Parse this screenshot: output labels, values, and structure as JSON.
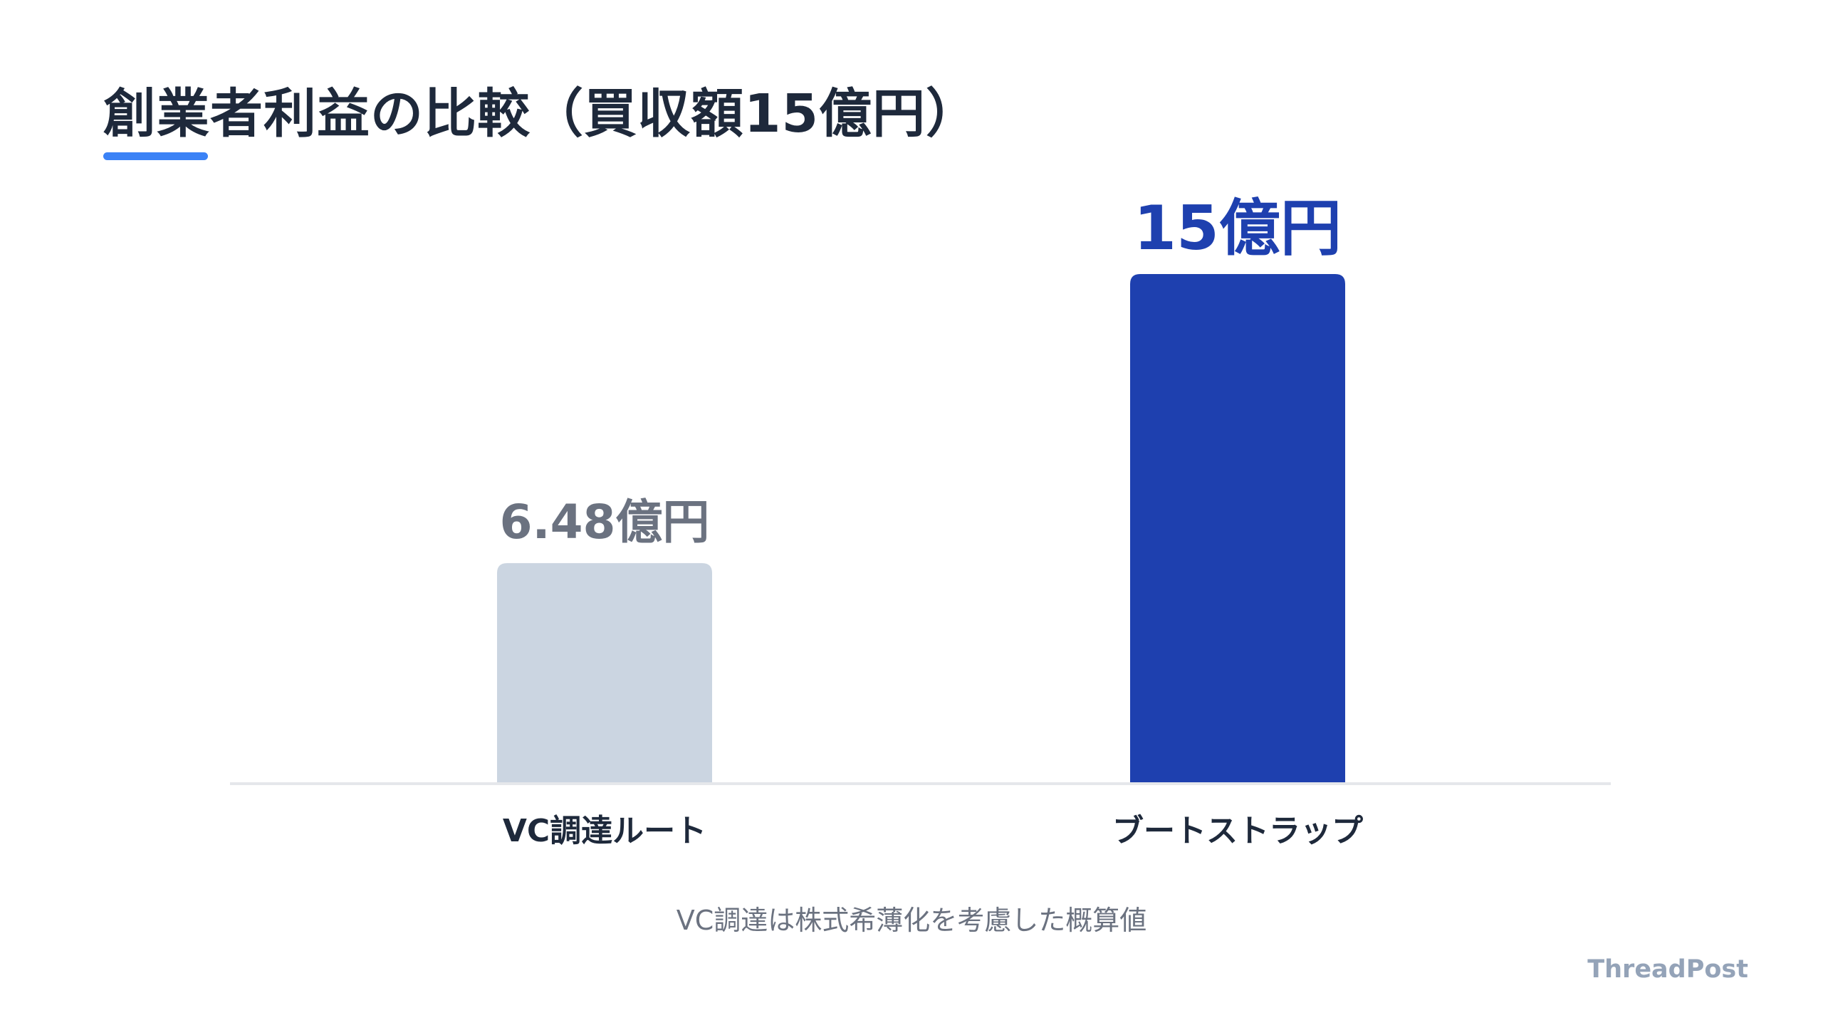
{
  "title": "創業者利益の比較（買収額15億円）",
  "note": "VC調達は株式希薄化を考慮した概算値",
  "brand": "ThreadPost",
  "colors": {
    "accent": "#3b82f6",
    "title": "#1e293b",
    "bar_muted": "#cbd5e1",
    "bar_highlight": "#1e40af",
    "label_muted": "#6b7280",
    "label_highlight": "#1e40af",
    "axis": "#e5e7eb",
    "category": "#1e293b"
  },
  "chart_data": {
    "type": "bar",
    "title": "創業者利益の比較（買収額15億円）",
    "categories": [
      "VC調達ルート",
      "ブートストラップ"
    ],
    "values": [
      6.48,
      15
    ],
    "value_labels": [
      "6.48億円",
      "15億円"
    ],
    "unit": "億円",
    "ylim": [
      0,
      15
    ],
    "grid": false,
    "legend": "none"
  }
}
